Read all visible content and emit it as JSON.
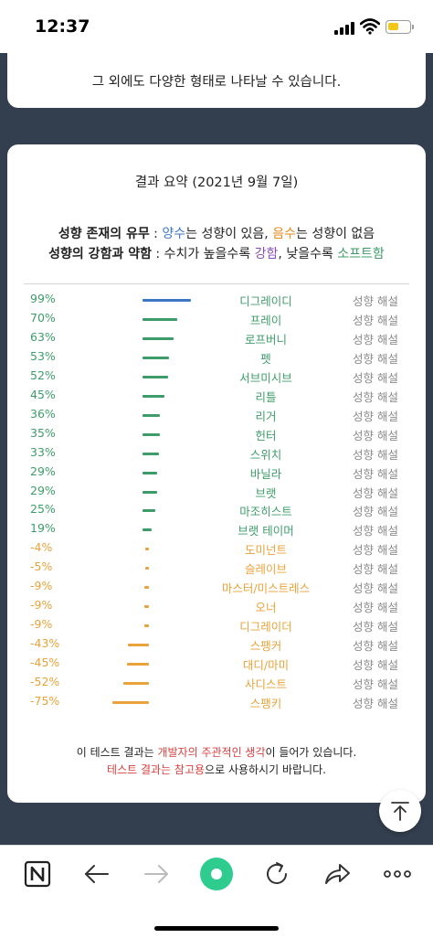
{
  "status": {
    "time": "12:37",
    "battery_color": "#f5c518"
  },
  "top_card": {
    "text": "그 외에도 다양한 형태로 나타날 수 있습니다."
  },
  "summary": {
    "title": "결과 요약 (2021년 9월 7일)",
    "legend_line1": {
      "label": "성향 존재의 유무",
      "sep": " : ",
      "pos": "양수",
      "pos_text": "는 성향이 있음, ",
      "neg": "음수",
      "neg_text": "는 성향이 없음"
    },
    "legend_line2": {
      "label": "성향의 강함과 약함",
      "sep": " : 수치가 높을수록 ",
      "strong": "강함",
      "mid": ", 낮을수록 ",
      "soft": "소프트함"
    },
    "link_label": "성향 해설",
    "colors": {
      "highest": "#3d77c4",
      "positive": "#3e9c6a",
      "negative": "#e9a33a"
    },
    "results": [
      {
        "pct": "99%",
        "value": 99,
        "name": "디그레이디"
      },
      {
        "pct": "70%",
        "value": 70,
        "name": "프레이"
      },
      {
        "pct": "63%",
        "value": 63,
        "name": "로프버니"
      },
      {
        "pct": "53%",
        "value": 53,
        "name": "펫"
      },
      {
        "pct": "52%",
        "value": 52,
        "name": "서브미시브"
      },
      {
        "pct": "45%",
        "value": 45,
        "name": "리틀"
      },
      {
        "pct": "36%",
        "value": 36,
        "name": "리거"
      },
      {
        "pct": "35%",
        "value": 35,
        "name": "헌터"
      },
      {
        "pct": "33%",
        "value": 33,
        "name": "스위치"
      },
      {
        "pct": "29%",
        "value": 29,
        "name": "바닐라"
      },
      {
        "pct": "29%",
        "value": 29,
        "name": "브랫"
      },
      {
        "pct": "25%",
        "value": 25,
        "name": "마조히스트"
      },
      {
        "pct": "19%",
        "value": 19,
        "name": "브랫 테이머"
      },
      {
        "pct": "-4%",
        "value": -4,
        "name": "도미넌트"
      },
      {
        "pct": "-5%",
        "value": -5,
        "name": "슬레이브"
      },
      {
        "pct": "-9%",
        "value": -9,
        "name": "마스터/미스트레스"
      },
      {
        "pct": "-9%",
        "value": -9,
        "name": "오너"
      },
      {
        "pct": "-9%",
        "value": -9,
        "name": "디그레이더"
      },
      {
        "pct": "-43%",
        "value": -43,
        "name": "스팽커"
      },
      {
        "pct": "-45%",
        "value": -45,
        "name": "대디/마미"
      },
      {
        "pct": "-52%",
        "value": -52,
        "name": "사디스트"
      },
      {
        "pct": "-75%",
        "value": -75,
        "name": "스팽키"
      }
    ]
  },
  "footer": {
    "line1_a": "이 테스트 결과는 ",
    "line1_hl": "개발자의 주관적인 생각",
    "line1_b": "이 들어가 있습니다.",
    "line2_hl": "테스트 결과는 참고용",
    "line2_b": "으로 사용하시기 바랍니다."
  },
  "toolbar": {
    "icons": [
      "naver-n-icon",
      "back-arrow-icon",
      "forward-arrow-icon",
      "green-dot-icon",
      "refresh-icon",
      "share-icon",
      "more-icon"
    ],
    "accent": "#2ecc8f"
  }
}
